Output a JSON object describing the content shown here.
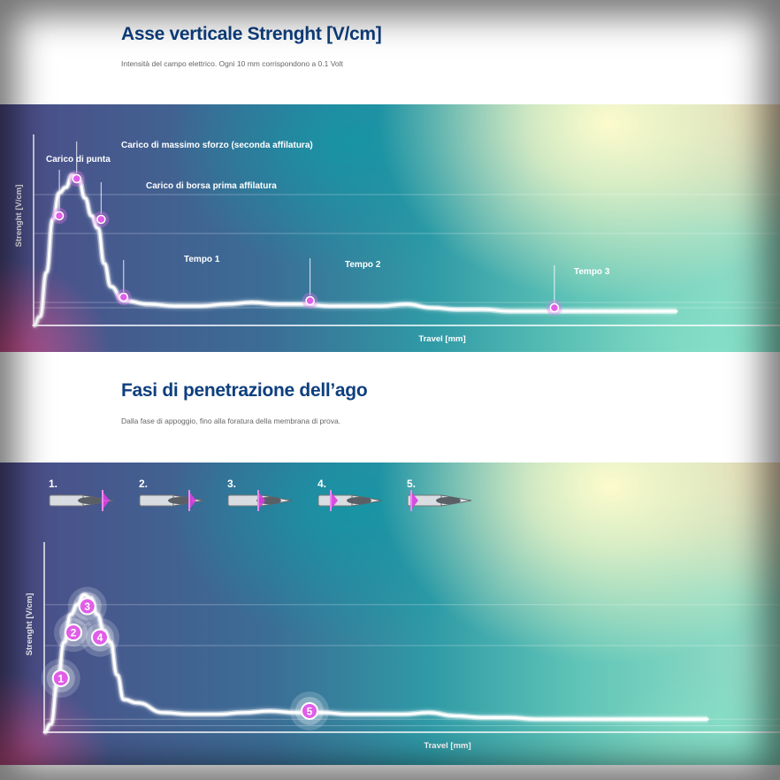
{
  "sections": [
    {
      "title": "Asse verticale Strenght [V/cm]",
      "subtitle": "Intensità del campo elettrico. Ogni 10 mm corrispondono a 0.1 Volt"
    },
    {
      "title": "Fasi di penetrazione dell’ago",
      "subtitle": "Dalla fase di appoggio, fino alla foratura della membrana di prova."
    }
  ],
  "stages": [
    "1.",
    "2.",
    "3.",
    "4.",
    "5."
  ],
  "colors": {
    "title": "#0e3f7e",
    "marker": "#e05ee8",
    "curve": "#ffffff"
  },
  "chart_data": [
    {
      "type": "line",
      "title": "",
      "xlabel": "Travel [mm]",
      "ylabel": "Strenght [V/cm]",
      "grid": true,
      "series": [
        {
          "x": [
            0,
            1,
            2,
            3,
            4,
            5,
            6,
            7,
            8,
            9,
            10,
            11,
            12,
            14,
            18,
            22,
            26,
            30,
            34,
            38,
            42,
            46,
            50,
            54,
            58,
            62,
            66,
            70,
            74,
            78,
            82,
            86,
            90,
            94,
            98,
            100
          ],
          "y": [
            0,
            0.05,
            0.3,
            0.6,
            0.75,
            0.78,
            0.85,
            0.83,
            0.72,
            0.62,
            0.55,
            0.35,
            0.22,
            0.14,
            0.12,
            0.11,
            0.11,
            0.12,
            0.13,
            0.12,
            0.12,
            0.11,
            0.11,
            0.11,
            0.12,
            0.1,
            0.09,
            0.09,
            0.08,
            0.08,
            0.08,
            0.08,
            0.08,
            0.08,
            0.08,
            0.08
          ]
        }
      ],
      "annotations": [
        {
          "label": "Carico di punta",
          "x": 4,
          "y": 0.62
        },
        {
          "label": "Carico di massimo sforzo (seconda affilatura)",
          "x": 6.7,
          "y": 0.83
        },
        {
          "label": "Carico di borsa prima affilatura",
          "x": 10.5,
          "y": 0.6
        },
        {
          "label": "Tempo 1",
          "x": 14,
          "y": 0.16
        },
        {
          "label": "Tempo 2",
          "x": 43,
          "y": 0.14
        },
        {
          "label": "Tempo 3",
          "x": 81,
          "y": 0.1
        }
      ]
    },
    {
      "type": "line",
      "title": "",
      "xlabel": "Travel [mm]",
      "ylabel": "Strenght [V/cm]",
      "grid": true,
      "series": [
        {
          "x": [
            0,
            1,
            2,
            3,
            4,
            5,
            6,
            7,
            8,
            9,
            10,
            11,
            12,
            14,
            18,
            22,
            26,
            30,
            34,
            38,
            42,
            46,
            50,
            54,
            58,
            62,
            66,
            70,
            74,
            78,
            82,
            86,
            90,
            94,
            98,
            100
          ],
          "y": [
            0,
            0.05,
            0.3,
            0.55,
            0.72,
            0.78,
            0.84,
            0.82,
            0.72,
            0.62,
            0.55,
            0.35,
            0.2,
            0.18,
            0.12,
            0.11,
            0.11,
            0.12,
            0.13,
            0.12,
            0.12,
            0.11,
            0.11,
            0.11,
            0.12,
            0.1,
            0.09,
            0.09,
            0.08,
            0.08,
            0.08,
            0.08,
            0.08,
            0.08,
            0.08,
            0.08
          ]
        }
      ],
      "annotations": [
        {
          "label": "1",
          "x": 2.5,
          "y": 0.33
        },
        {
          "label": "2",
          "x": 4.4,
          "y": 0.61
        },
        {
          "label": "3",
          "x": 6.5,
          "y": 0.77
        },
        {
          "label": "4",
          "x": 8.4,
          "y": 0.58
        },
        {
          "label": "5",
          "x": 40,
          "y": 0.13
        }
      ]
    }
  ]
}
